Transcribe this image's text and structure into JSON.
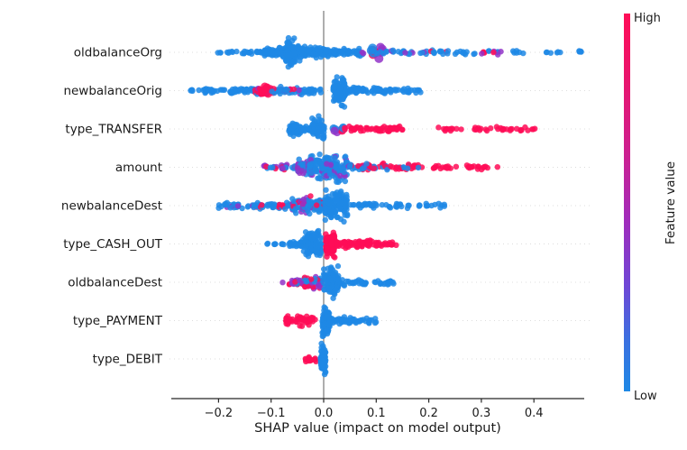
{
  "chart_data": {
    "type": "scatter",
    "subtype": "shap-beeswarm",
    "title": "",
    "xlabel": "SHAP value (impact on model output)",
    "ylabel": "",
    "xlim": [
      -0.29,
      0.5
    ],
    "x_ticks": [
      -0.2,
      -0.1,
      0.0,
      0.1,
      0.2,
      0.3,
      0.4
    ],
    "x_tick_labels": [
      "−0.2",
      "−0.1",
      "0.0",
      "0.1",
      "0.2",
      "0.3",
      "0.4"
    ],
    "grid": "dotted-horizontal",
    "zero_line": true,
    "colorbar": {
      "label": "Feature value",
      "high_label": "High",
      "low_label": "Low",
      "color_high": "#ff0d57",
      "color_mid": "#9234c8",
      "color_low": "#1e88e5"
    },
    "palette": {
      "low": "#1e88e5",
      "high": "#ff0d57",
      "mid": "#9234c8"
    },
    "features": [
      {
        "name": "oldbalanceOrg",
        "clusters": [
          {
            "a": -0.205,
            "b": -0.19,
            "n": 3,
            "s": 1.0,
            "c": [
              [
                "low",
                1
              ]
            ]
          },
          {
            "a": -0.185,
            "b": -0.162,
            "n": 6,
            "s": 1.0,
            "c": [
              [
                "low",
                1
              ]
            ]
          },
          {
            "a": -0.155,
            "b": -0.115,
            "n": 18,
            "s": 1.5,
            "c": [
              [
                "low",
                1
              ]
            ]
          },
          {
            "a": -0.115,
            "b": -0.085,
            "n": 40,
            "s": 4.0,
            "c": [
              [
                "low",
                1
              ]
            ]
          },
          {
            "a": -0.085,
            "b": -0.045,
            "n": 90,
            "s": 7.0,
            "c": [
              [
                "low",
                1
              ]
            ]
          },
          {
            "a": -0.072,
            "b": -0.055,
            "n": 70,
            "s": 13.0,
            "c": [
              [
                "low",
                1
              ]
            ]
          },
          {
            "a": -0.045,
            "b": 0.0,
            "n": 70,
            "s": 5.0,
            "c": [
              [
                "low",
                1
              ]
            ]
          },
          {
            "a": 0.0,
            "b": 0.07,
            "n": 60,
            "s": 3.5,
            "c": [
              [
                "low",
                1
              ]
            ]
          },
          {
            "a": 0.09,
            "b": 0.112,
            "n": 16,
            "s": 5.0,
            "c": [
              [
                "mid",
                2
              ],
              [
                "high",
                1
              ],
              [
                "low",
                1
              ]
            ],
            "r": 5
          },
          {
            "a": 0.07,
            "b": 0.2,
            "n": 30,
            "s": 2.2,
            "c": [
              [
                "low",
                5
              ],
              [
                "mid",
                1
              ]
            ]
          },
          {
            "a": 0.2,
            "b": 0.245,
            "n": 12,
            "s": 2.0,
            "c": [
              [
                "low",
                3
              ],
              [
                "high",
                1
              ]
            ]
          },
          {
            "a": 0.25,
            "b": 0.3,
            "n": 10,
            "s": 2.0,
            "c": [
              [
                "low",
                1
              ]
            ]
          },
          {
            "a": 0.3,
            "b": 0.345,
            "n": 12,
            "s": 2.0,
            "c": [
              [
                "high",
                2
              ],
              [
                "mid",
                1
              ],
              [
                "low",
                1
              ]
            ]
          },
          {
            "a": 0.35,
            "b": 0.38,
            "n": 6,
            "s": 1.5,
            "c": [
              [
                "low",
                1
              ]
            ]
          },
          {
            "a": 0.42,
            "b": 0.46,
            "n": 6,
            "s": 1.2,
            "c": [
              [
                "low",
                1
              ]
            ]
          },
          {
            "a": 0.47,
            "b": 0.5,
            "n": 5,
            "s": 1.2,
            "c": [
              [
                "low",
                1
              ]
            ]
          }
        ]
      },
      {
        "name": "newbalanceOrig",
        "clusters": [
          {
            "a": -0.255,
            "b": -0.235,
            "n": 5,
            "s": 1.2,
            "c": [
              [
                "low",
                1
              ]
            ]
          },
          {
            "a": -0.23,
            "b": -0.135,
            "n": 55,
            "s": 2.5,
            "c": [
              [
                "low",
                1
              ]
            ]
          },
          {
            "a": -0.135,
            "b": -0.1,
            "n": 40,
            "s": 4.0,
            "c": [
              [
                "high",
                2
              ],
              [
                "mid",
                1
              ],
              [
                "low",
                2
              ]
            ]
          },
          {
            "a": -0.118,
            "b": -0.105,
            "n": 12,
            "s": 5.0,
            "c": [
              [
                "high",
                3
              ],
              [
                "mid",
                1
              ]
            ],
            "r": 4.5
          },
          {
            "a": -0.1,
            "b": -0.04,
            "n": 45,
            "s": 3.5,
            "c": [
              [
                "low",
                6
              ],
              [
                "mid",
                1
              ],
              [
                "high",
                1
              ]
            ]
          },
          {
            "a": -0.04,
            "b": -0.005,
            "n": 25,
            "s": 3.0,
            "c": [
              [
                "low",
                1
              ]
            ]
          },
          {
            "a": 0.018,
            "b": 0.042,
            "n": 110,
            "s": 13.0,
            "c": [
              [
                "low",
                1
              ]
            ]
          },
          {
            "a": 0.042,
            "b": 0.12,
            "n": 55,
            "s": 3.0,
            "c": [
              [
                "low",
                1
              ]
            ]
          },
          {
            "a": 0.12,
            "b": 0.185,
            "n": 25,
            "s": 2.5,
            "c": [
              [
                "low",
                1
              ]
            ]
          }
        ]
      },
      {
        "name": "type_TRANSFER",
        "clusters": [
          {
            "a": -0.068,
            "b": -0.044,
            "n": 40,
            "s": 7.0,
            "c": [
              [
                "low",
                1
              ]
            ]
          },
          {
            "a": -0.044,
            "b": -0.022,
            "n": 18,
            "s": 3.0,
            "c": [
              [
                "low",
                1
              ]
            ]
          },
          {
            "a": -0.022,
            "b": 0.002,
            "n": 65,
            "s": 11.0,
            "c": [
              [
                "low",
                1
              ]
            ]
          },
          {
            "a": 0.018,
            "b": 0.038,
            "n": 10,
            "s": 3.0,
            "c": [
              [
                "low",
                2
              ],
              [
                "mid",
                2
              ],
              [
                "high",
                1
              ]
            ],
            "r": 4.5
          },
          {
            "a": 0.04,
            "b": 0.15,
            "n": 55,
            "s": 2.6,
            "c": [
              [
                "high",
                1
              ]
            ]
          },
          {
            "a": 0.215,
            "b": 0.265,
            "n": 12,
            "s": 2.0,
            "c": [
              [
                "high",
                1
              ]
            ]
          },
          {
            "a": 0.275,
            "b": 0.3,
            "n": 7,
            "s": 2.0,
            "c": [
              [
                "high",
                1
              ]
            ]
          },
          {
            "a": 0.308,
            "b": 0.36,
            "n": 14,
            "s": 2.0,
            "c": [
              [
                "high",
                1
              ]
            ]
          },
          {
            "a": 0.365,
            "b": 0.405,
            "n": 9,
            "s": 2.0,
            "c": [
              [
                "high",
                1
              ]
            ]
          }
        ]
      },
      {
        "name": "amount",
        "clusters": [
          {
            "a": -0.115,
            "b": -0.05,
            "n": 38,
            "s": 2.6,
            "c": [
              [
                "mid",
                3
              ],
              [
                "high",
                2
              ],
              [
                "low",
                2
              ]
            ]
          },
          {
            "a": -0.05,
            "b": -0.028,
            "n": 40,
            "s": 7.0,
            "c": [
              [
                "mid",
                2
              ],
              [
                "low",
                3
              ],
              [
                "high",
                1
              ]
            ]
          },
          {
            "a": -0.028,
            "b": 0.045,
            "n": 160,
            "s": 13.0,
            "c": [
              [
                "low",
                4
              ],
              [
                "mid",
                1
              ]
            ]
          },
          {
            "a": 0.045,
            "b": 0.125,
            "n": 50,
            "s": 3.2,
            "c": [
              [
                "high",
                2
              ],
              [
                "low",
                2
              ],
              [
                "mid",
                1
              ]
            ]
          },
          {
            "a": 0.125,
            "b": 0.2,
            "n": 26,
            "s": 2.6,
            "c": [
              [
                "high",
                3
              ],
              [
                "low",
                1
              ]
            ]
          },
          {
            "a": 0.205,
            "b": 0.26,
            "n": 14,
            "s": 2.0,
            "c": [
              [
                "high",
                1
              ]
            ]
          },
          {
            "a": 0.27,
            "b": 0.34,
            "n": 16,
            "s": 2.0,
            "c": [
              [
                "high",
                1
              ]
            ]
          }
        ]
      },
      {
        "name": "newbalanceDest",
        "clusters": [
          {
            "a": -0.2,
            "b": -0.135,
            "n": 28,
            "s": 2.4,
            "c": [
              [
                "low",
                6
              ],
              [
                "mid",
                1
              ]
            ]
          },
          {
            "a": -0.135,
            "b": -0.06,
            "n": 45,
            "s": 3.0,
            "c": [
              [
                "low",
                5
              ],
              [
                "high",
                1
              ]
            ]
          },
          {
            "a": -0.06,
            "b": -0.018,
            "n": 70,
            "s": 8.0,
            "c": [
              [
                "low",
                3
              ],
              [
                "mid",
                1
              ],
              [
                "high",
                1
              ]
            ]
          },
          {
            "a": -0.018,
            "b": 0.002,
            "n": 45,
            "s": 6.0,
            "c": [
              [
                "low",
                4
              ],
              [
                "high",
                1
              ]
            ]
          },
          {
            "a": 0.002,
            "b": 0.045,
            "n": 130,
            "s": 13.0,
            "c": [
              [
                "low",
                1
              ]
            ]
          },
          {
            "a": 0.05,
            "b": 0.105,
            "n": 22,
            "s": 2.6,
            "c": [
              [
                "low",
                1
              ]
            ]
          },
          {
            "a": 0.11,
            "b": 0.165,
            "n": 16,
            "s": 2.4,
            "c": [
              [
                "low",
                1
              ]
            ]
          },
          {
            "a": 0.175,
            "b": 0.23,
            "n": 14,
            "s": 2.4,
            "c": [
              [
                "low",
                1
              ]
            ]
          }
        ]
      },
      {
        "name": "type_CASH_OUT",
        "clusters": [
          {
            "a": -0.112,
            "b": -0.106,
            "n": 2,
            "s": 1.0,
            "c": [
              [
                "low",
                1
              ]
            ]
          },
          {
            "a": -0.096,
            "b": -0.07,
            "n": 8,
            "s": 1.3,
            "c": [
              [
                "low",
                1
              ]
            ]
          },
          {
            "a": -0.066,
            "b": -0.038,
            "n": 28,
            "s": 3.0,
            "c": [
              [
                "low",
                1
              ]
            ]
          },
          {
            "a": -0.038,
            "b": -0.004,
            "n": 120,
            "s": 12.0,
            "c": [
              [
                "low",
                1
              ]
            ]
          },
          {
            "a": 0.004,
            "b": 0.022,
            "n": 100,
            "s": 12.0,
            "c": [
              [
                "high",
                1
              ]
            ]
          },
          {
            "a": 0.022,
            "b": 0.095,
            "n": 60,
            "s": 3.4,
            "c": [
              [
                "high",
                1
              ]
            ]
          },
          {
            "a": 0.095,
            "b": 0.138,
            "n": 24,
            "s": 2.8,
            "c": [
              [
                "high",
                1
              ]
            ]
          }
        ]
      },
      {
        "name": "oldbalanceDest",
        "clusters": [
          {
            "a": -0.078,
            "b": -0.073,
            "n": 1,
            "s": 1.0,
            "c": [
              [
                "mid",
                1
              ]
            ]
          },
          {
            "a": -0.066,
            "b": -0.04,
            "n": 22,
            "s": 3.2,
            "c": [
              [
                "mid",
                2
              ],
              [
                "high",
                2
              ],
              [
                "low",
                1
              ]
            ]
          },
          {
            "a": -0.04,
            "b": -0.004,
            "n": 50,
            "s": 6.0,
            "c": [
              [
                "low",
                3
              ],
              [
                "mid",
                2
              ],
              [
                "high",
                1
              ]
            ]
          },
          {
            "a": 0.0,
            "b": 0.028,
            "n": 110,
            "s": 13.0,
            "c": [
              [
                "low",
                1
              ]
            ]
          },
          {
            "a": 0.028,
            "b": 0.082,
            "n": 26,
            "s": 2.6,
            "c": [
              [
                "low",
                1
              ]
            ]
          },
          {
            "a": 0.095,
            "b": 0.14,
            "n": 16,
            "s": 2.6,
            "c": [
              [
                "low",
                1
              ]
            ]
          }
        ]
      },
      {
        "name": "type_PAYMENT",
        "clusters": [
          {
            "a": -0.072,
            "b": -0.046,
            "n": 26,
            "s": 4.5,
            "c": [
              [
                "high",
                1
              ]
            ]
          },
          {
            "a": -0.046,
            "b": -0.016,
            "n": 32,
            "s": 5.0,
            "c": [
              [
                "high",
                1
              ]
            ]
          },
          {
            "a": -0.003,
            "b": 0.012,
            "n": 95,
            "s": 13.0,
            "c": [
              [
                "low",
                1
              ]
            ]
          },
          {
            "a": 0.012,
            "b": 0.062,
            "n": 40,
            "s": 3.0,
            "c": [
              [
                "low",
                1
              ]
            ]
          },
          {
            "a": 0.062,
            "b": 0.1,
            "n": 16,
            "s": 2.4,
            "c": [
              [
                "low",
                1
              ]
            ]
          }
        ]
      },
      {
        "name": "type_DEBIT",
        "clusters": [
          {
            "a": -0.037,
            "b": -0.013,
            "n": 14,
            "s": 2.4,
            "c": [
              [
                "high",
                1
              ]
            ]
          },
          {
            "a": -0.006,
            "b": 0.004,
            "n": 80,
            "s": 13.0,
            "c": [
              [
                "low",
                1
              ]
            ]
          }
        ]
      }
    ]
  }
}
